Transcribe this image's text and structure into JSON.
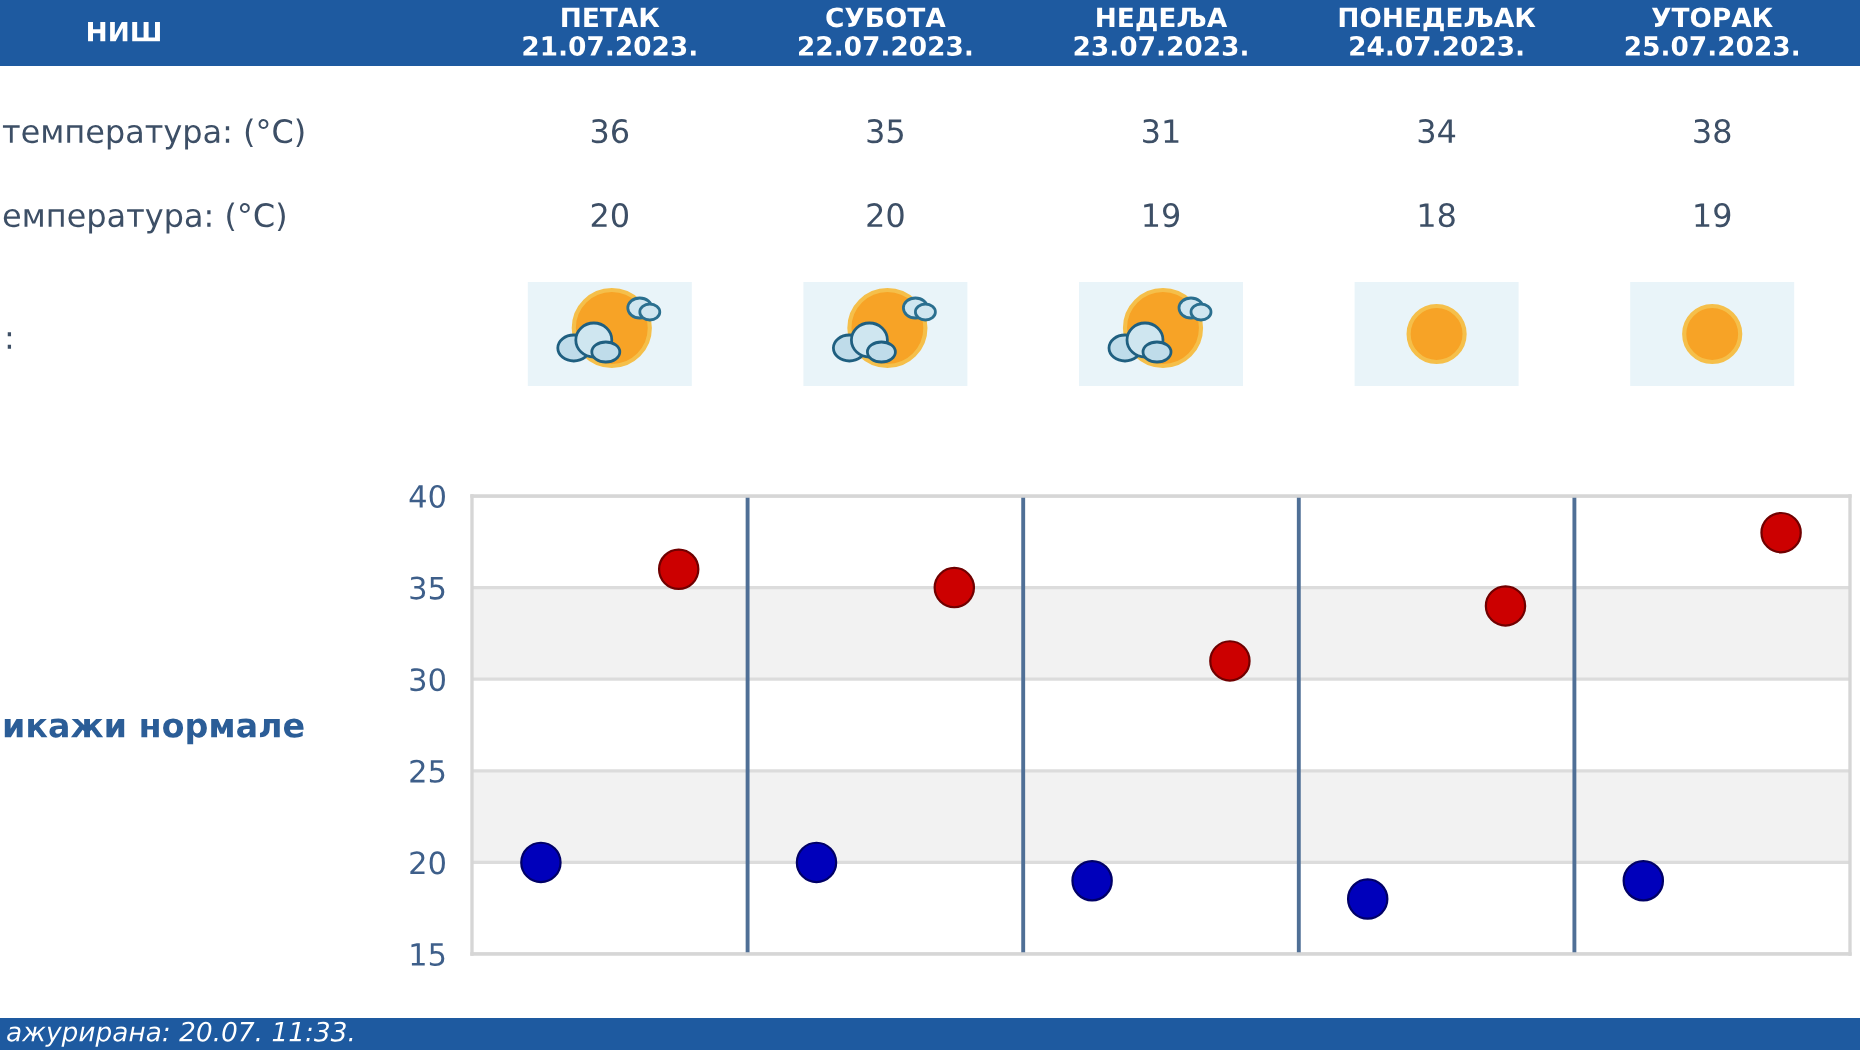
{
  "chart_data": {
    "type": "scatter",
    "title": "НИШ",
    "categories": [
      null,
      null,
      null,
      null,
      null
    ],
    "series": [
      {
        "color": "#cc0000",
        "values": [
          36,
          35,
          31,
          34,
          38
        ]
      },
      {
        "color": "#0000bb",
        "values": [
          20,
          20,
          19,
          18,
          19
        ]
      }
    ],
    "ylim": [
      15,
      40
    ],
    "yticks": [
      15,
      20,
      25,
      30,
      35,
      40
    ],
    "bands": [
      {
        "axis": "y",
        "from": 30,
        "to": 35,
        "color": "#f2f2f2"
      },
      {
        "axis": "y",
        "from": 20,
        "to": 25,
        "color": "#f2f2f2"
      }
    ],
    "grid": true,
    "marker": "circle",
    "data_labels": true,
    "annotations": [
      "ПЕТАК\n21.07.2023.",
      "СУБОТА\n22.07.2023.",
      "НЕДЕЉА\n23.07.2023.",
      "ПОНЕДЕЉАК\n24.07.2023.",
      "УТОРАК\n25.07.2023.",
      "температура: (°C)",
      "емпература: (°C)",
      ":",
      "икажи нормале",
      "ажурирана: 20.07. 11:33."
    ]
  }
}
